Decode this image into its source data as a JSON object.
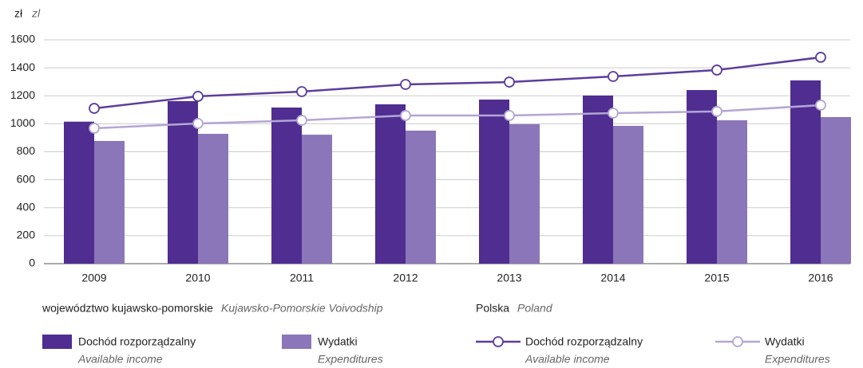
{
  "chart_data": {
    "type": "bar",
    "y_label": "zł",
    "y_label_en": "zl",
    "categories": [
      "2009",
      "2010",
      "2011",
      "2012",
      "2013",
      "2014",
      "2015",
      "2016"
    ],
    "ylim": [
      0,
      1600
    ],
    "yticks": [
      0,
      200,
      400,
      600,
      800,
      1000,
      1200,
      1400,
      1600
    ],
    "grid": true,
    "legend_groups": [
      {
        "name": "województwo kujawsko-pomorskie",
        "name_en": "Kujawsko-Pomorskie Voivodship"
      },
      {
        "name": "Polska",
        "name_en": "Poland"
      }
    ],
    "series": [
      {
        "name": "Dochód rozporządzalny",
        "name_en": "Available income",
        "type": "bar",
        "group": 0,
        "color": "#4f2d91",
        "values": [
          1015,
          1162,
          1116,
          1139,
          1173,
          1202,
          1241,
          1310
        ]
      },
      {
        "name": "Wydatki",
        "name_en": "Expenditures",
        "type": "bar",
        "group": 0,
        "color": "#8a76b8",
        "values": [
          877,
          928,
          922,
          951,
          997,
          985,
          1025,
          1048
        ]
      },
      {
        "name": "Dochód rozporządzalny",
        "name_en": "Available income",
        "type": "line",
        "group": 1,
        "color": "#5c3d9c",
        "values": [
          1110,
          1196,
          1230,
          1281,
          1298,
          1338,
          1384,
          1475
        ]
      },
      {
        "name": "Wydatki",
        "name_en": "Expenditures",
        "type": "line",
        "group": 1,
        "color": "#b3a6d4",
        "values": [
          968,
          1002,
          1025,
          1059,
          1059,
          1076,
          1088,
          1133
        ]
      }
    ]
  }
}
